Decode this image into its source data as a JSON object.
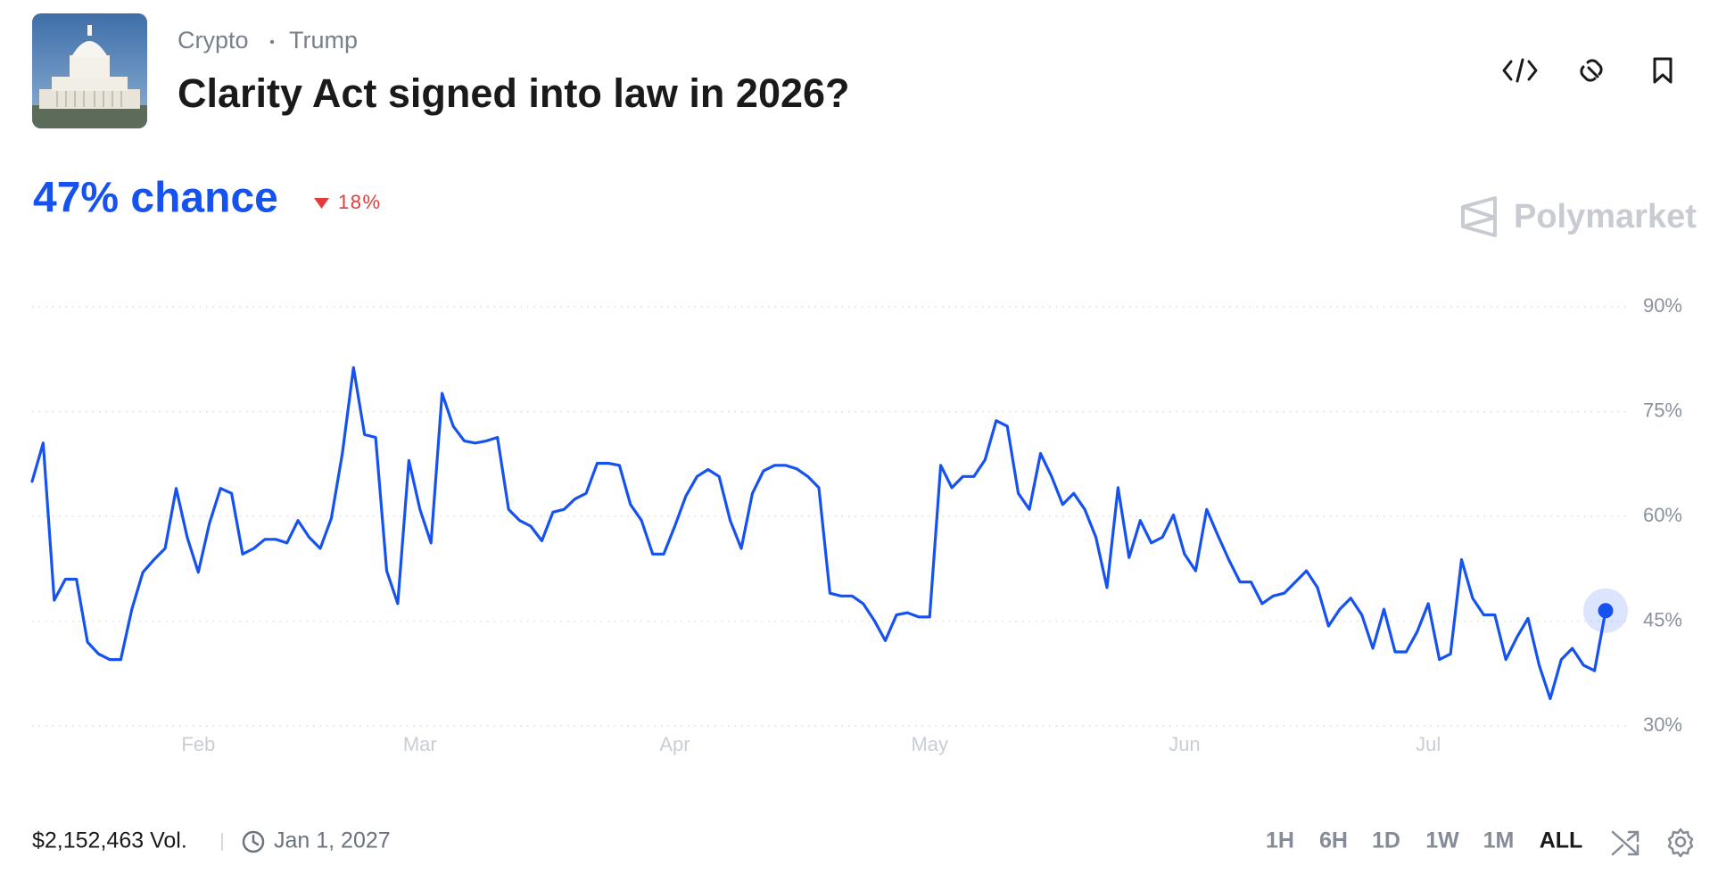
{
  "header": {
    "category": "Crypto",
    "tag": "Trump",
    "title": "Clarity Act signed into law in 2026?",
    "probability_label": "47% chance",
    "change_label": "18%",
    "brand": "Polymarket"
  },
  "chart_data": {
    "type": "line",
    "color": "#1652f0",
    "grid": true,
    "categories": [
      null,
      null,
      null,
      null,
      null,
      null,
      null,
      null,
      null,
      null,
      null,
      null,
      null,
      null,
      null,
      "Feb",
      null,
      null,
      null,
      null,
      null,
      null,
      null,
      null,
      null,
      null,
      null,
      null,
      null,
      null,
      null,
      null,
      null,
      null,
      null,
      "Mar",
      null,
      null,
      null,
      null,
      null,
      null,
      null,
      null,
      null,
      null,
      null,
      null,
      null,
      null,
      null,
      null,
      null,
      null,
      null,
      null,
      null,
      null,
      "Apr",
      null,
      null,
      null,
      null,
      null,
      null,
      null,
      null,
      null,
      null,
      null,
      null,
      null,
      null,
      null,
      null,
      null,
      null,
      null,
      null,
      null,
      null,
      "May",
      null,
      null,
      null,
      null,
      null,
      null,
      null,
      null,
      null,
      null,
      null,
      null,
      null,
      null,
      null,
      null,
      null,
      null,
      null,
      null,
      null,
      null,
      "Jun",
      null,
      null,
      null,
      null,
      null,
      null,
      null,
      null,
      null,
      null,
      null,
      null,
      null,
      null,
      null,
      null,
      null,
      null,
      null,
      null,
      null,
      "Jul",
      null,
      null,
      null,
      null,
      null,
      null,
      null,
      null,
      null,
      null,
      null,
      null,
      null,
      null,
      null,
      null
    ],
    "values": [
      65,
      70.5,
      48,
      51,
      51,
      42,
      40.3,
      39.5,
      39.5,
      46.7,
      52,
      53.8,
      55.4,
      64,
      57,
      52,
      59,
      64,
      63.3,
      54.6,
      55.4,
      56.7,
      56.7,
      56.2,
      59.4,
      57,
      55.4,
      59.7,
      69,
      81.3,
      71.7,
      71.3,
      52.2,
      47.5,
      68,
      61,
      56.2,
      77.6,
      72.9,
      70.8,
      70.5,
      70.8,
      71.3,
      61,
      59.4,
      58.6,
      56.5,
      60.6,
      61,
      62.5,
      63.3,
      67.6,
      67.6,
      67.3,
      61.7,
      59.4,
      54.6,
      54.6,
      58.6,
      62.9,
      65.7,
      66.7,
      65.7,
      59.4,
      55.4,
      63.3,
      66.5,
      67.3,
      67.3,
      66.8,
      65.7,
      64.1,
      49,
      48.6,
      48.6,
      47.5,
      45.1,
      42.2,
      45.9,
      46.2,
      45.6,
      45.6,
      67.3,
      64.1,
      65.7,
      65.7,
      68.1,
      73.7,
      72.9,
      63.3,
      61,
      69,
      65.7,
      61.7,
      63.3,
      61,
      57,
      49.8,
      64.1,
      54.1,
      59.4,
      56.2,
      57,
      60.2,
      54.6,
      52.2,
      61,
      57.3,
      53.8,
      50.6,
      50.6,
      47.5,
      48.6,
      49,
      50.6,
      52.2,
      49.8,
      44.3,
      46.7,
      48.3,
      45.9,
      41.1,
      46.7,
      40.6,
      40.6,
      43.5,
      47.5,
      39.5,
      40.3,
      53.8,
      48.3,
      45.9,
      45.9,
      39.5,
      42.7,
      45.4,
      38.7,
      33.9,
      39.5,
      41.1,
      38.7,
      37.9,
      46.5
    ],
    "ylim": [
      30,
      90
    ],
    "yticks": [
      {
        "value": 30,
        "label": "30%"
      },
      {
        "value": 45,
        "label": "45%"
      },
      {
        "value": 60,
        "label": "60%"
      },
      {
        "value": 75,
        "label": "75%"
      },
      {
        "value": 90,
        "label": "90%"
      }
    ]
  },
  "footer": {
    "volume": "$2,152,463 Vol.",
    "end_date": "Jan 1, 2027",
    "ranges": [
      "1H",
      "6H",
      "1D",
      "1W",
      "1M",
      "ALL"
    ],
    "active_range": 5
  }
}
